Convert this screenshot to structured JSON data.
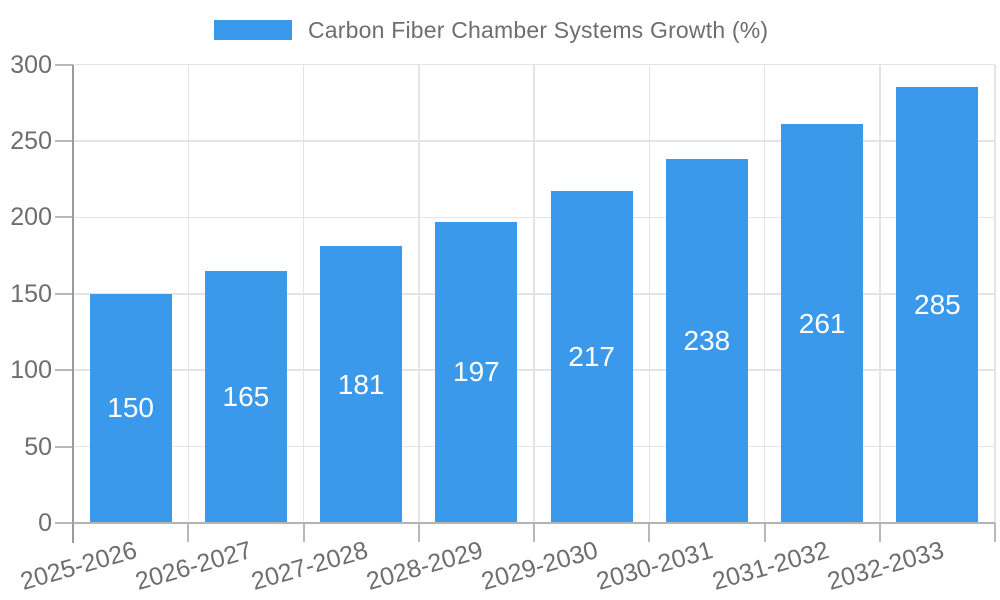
{
  "legend": {
    "label": "Carbon Fiber Chamber Systems Growth (%)"
  },
  "colors": {
    "bar": "#3b99ec",
    "grid": "#e4e4e4",
    "axis": "#9b9b9b",
    "x_axis": "#b3b3b3",
    "tick": "#b8b8b8",
    "tick_text": "#6e6e6e",
    "legend_text": "#6e6e6e",
    "value_text": "#ffffff",
    "background": "#ffffff"
  },
  "chart_data": {
    "type": "bar",
    "title": "Carbon Fiber Chamber Systems Growth (%)",
    "categories": [
      "2025-2026",
      "2026-2027",
      "2027-2028",
      "2028-2029",
      "2029-2030",
      "2030-2031",
      "2031-2032",
      "2032-2033"
    ],
    "values": [
      150,
      165,
      181,
      197,
      217,
      238,
      261,
      285
    ],
    "xlabel": "",
    "ylabel": "",
    "ylim": [
      0,
      300
    ],
    "yticks": [
      0,
      50,
      100,
      150,
      200,
      250,
      300
    ],
    "grid": true,
    "legend_position": "top-center",
    "value_label_position": "inside-center",
    "x_tick_rotation_deg": -16
  }
}
